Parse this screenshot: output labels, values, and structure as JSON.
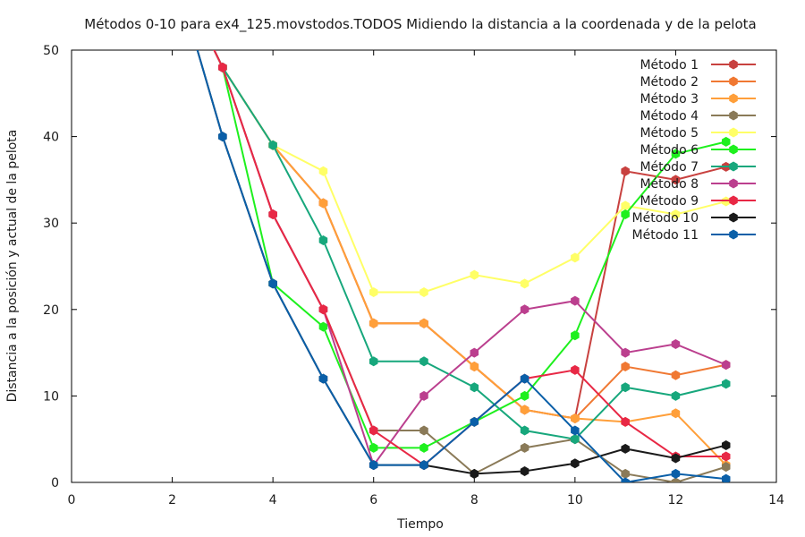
{
  "chart_data": {
    "type": "line",
    "title": "Métodos 0-10 para ex4_125.movstodos.TODOS Midiendo la distancia a la coordenada y de la pelota",
    "xlabel": "Tiempo",
    "ylabel": "Distancia a la posición y actual de la pelota",
    "xlim": [
      0,
      14
    ],
    "ylim": [
      0,
      50
    ],
    "xticks": [
      0,
      2,
      4,
      6,
      8,
      10,
      12,
      14
    ],
    "yticks": [
      0,
      10,
      20,
      30,
      40,
      50
    ],
    "grid": false,
    "legend": "top-right",
    "x": [
      2,
      3,
      4,
      5,
      6,
      7,
      8,
      9,
      10,
      11,
      12,
      13
    ],
    "series": [
      {
        "name": "Método 1",
        "color": "#c8413f",
        "values": [
          60,
          48,
          39,
          32.3,
          18.4,
          18.4,
          13.4,
          8.4,
          7.4,
          36,
          35,
          36.5
        ]
      },
      {
        "name": "Método 2",
        "color": "#f07832",
        "values": [
          60,
          48,
          39,
          32.3,
          18.4,
          18.4,
          13.4,
          8.4,
          7.4,
          13.4,
          12.4,
          13.6
        ]
      },
      {
        "name": "Método 3",
        "color": "#ff9f3a",
        "values": [
          60,
          48,
          39,
          32.3,
          18.4,
          18.4,
          13.4,
          8.4,
          7.4,
          7,
          8,
          2
        ]
      },
      {
        "name": "Método 4",
        "color": "#8a7a58",
        "values": [
          60,
          48,
          31,
          20,
          6,
          6,
          1,
          4,
          5,
          1,
          0,
          1.8
        ]
      },
      {
        "name": "Método 5",
        "color": "#ffff66",
        "values": [
          60,
          48,
          39,
          36,
          22,
          22,
          24,
          23,
          26,
          32,
          31,
          32.5
        ]
      },
      {
        "name": "Método 6",
        "color": "#1ef01e",
        "values": [
          60,
          48,
          23,
          18,
          4,
          4,
          7,
          10,
          17,
          31,
          38,
          39.4
        ]
      },
      {
        "name": "Método 7",
        "color": "#17a77c",
        "values": [
          60,
          48,
          39,
          28,
          14,
          14,
          11,
          6,
          5,
          11,
          10,
          11.4
        ]
      },
      {
        "name": "Método 8",
        "color": "#bb3f8e",
        "values": [
          60,
          48,
          31,
          20,
          2,
          10,
          15,
          20,
          21,
          15,
          16,
          13.6
        ]
      },
      {
        "name": "Método 9",
        "color": "#e82845",
        "values": [
          60,
          48,
          31,
          20,
          6,
          2,
          7,
          12,
          13,
          7,
          3,
          3
        ]
      },
      {
        "name": "Método 10",
        "color": "#1a1a1a",
        "values": [
          60,
          40,
          23,
          12,
          2,
          2,
          1,
          1.3,
          2.2,
          3.9,
          2.8,
          4.3
        ]
      },
      {
        "name": "Método 11",
        "color": "#0a5fa8",
        "values": [
          60,
          40,
          23,
          12,
          2,
          2,
          7,
          12,
          6,
          0,
          1,
          0.4
        ]
      }
    ]
  }
}
